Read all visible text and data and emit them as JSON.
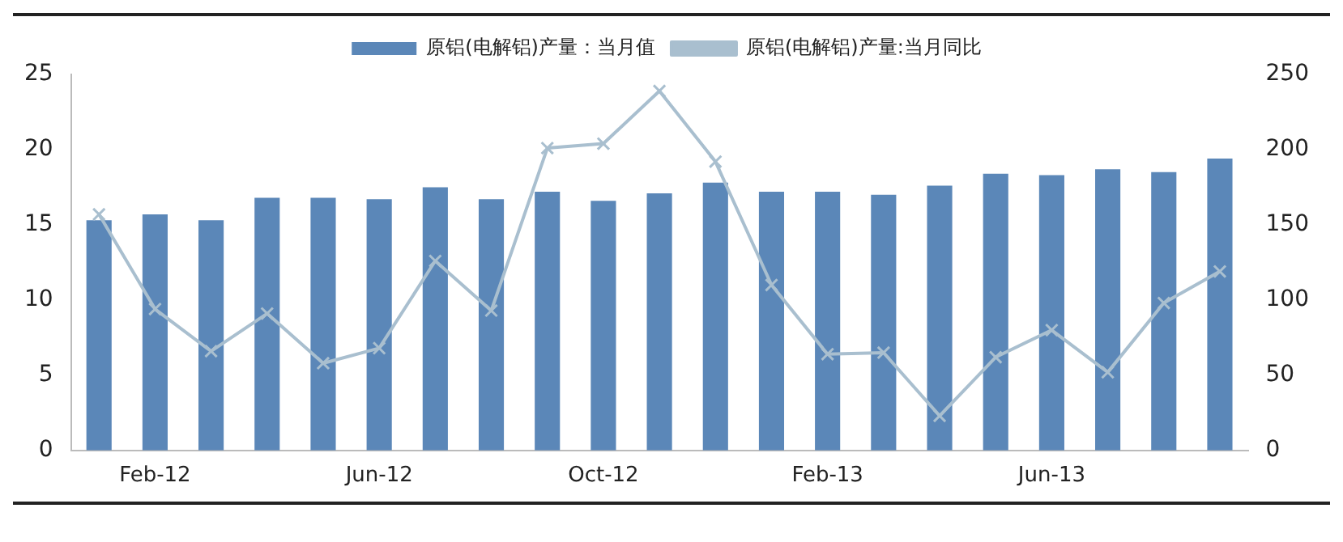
{
  "chart_data": {
    "type": "bar",
    "categories": [
      null,
      "Feb-12",
      null,
      null,
      null,
      "Jun-12",
      null,
      null,
      null,
      "Oct-12",
      null,
      null,
      null,
      "Feb-13",
      null,
      null,
      null,
      "Jun-13",
      null,
      null,
      null
    ],
    "series": [
      {
        "name": "原铝(电解铝)产量：当月值",
        "color": "#5b87b8",
        "values": [
          15.3,
          15.7,
          15.3,
          16.8,
          16.8,
          16.7,
          17.5,
          16.7,
          17.2,
          16.6,
          17.1,
          17.8,
          17.2,
          17.2,
          17.0,
          17.6,
          18.4,
          18.3,
          18.7,
          18.5,
          19.4
        ]
      },
      {
        "name": "原铝(电解铝)产量:当月同比",
        "type": "line",
        "axis": "y2",
        "marker": "cross",
        "color": "#a9bfcf",
        "values": [
          157,
          94,
          66,
          91,
          58,
          68,
          126,
          93,
          201,
          204,
          239,
          192,
          110,
          64,
          65,
          23,
          62,
          80,
          52,
          98,
          119
        ]
      }
    ],
    "ylim": [
      0,
      25
    ],
    "yticks": [
      0,
      5,
      10,
      15,
      20,
      25
    ],
    "y2lim": [
      0,
      250
    ],
    "y2ticks": [
      0,
      50,
      100,
      150,
      200,
      250
    ],
    "grid": false,
    "legend": "top"
  }
}
